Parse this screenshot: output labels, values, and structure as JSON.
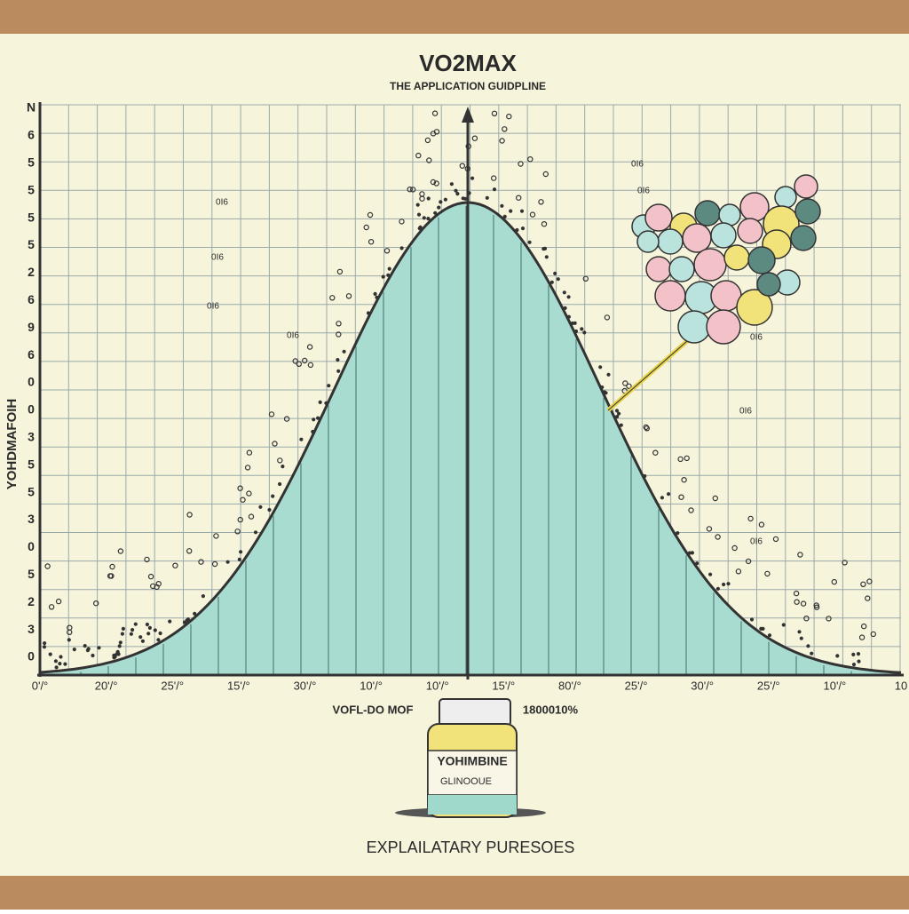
{
  "poster": {
    "title": "VO2MAX",
    "subtitle": "THE APPLICATION GUIDPLINE",
    "y_axis_label": "YOHDMAFOIH",
    "y_labels": [
      "N",
      "6",
      "5",
      "5",
      "5",
      "5",
      "2",
      "6",
      "9",
      "6",
      "0",
      "0",
      "3",
      "5",
      "5",
      "3",
      "0",
      "5",
      "2",
      "3",
      "0"
    ],
    "x_labels": [
      "0'/°",
      "20'/°",
      "25'/°",
      "15'/°",
      "30'/°",
      "10'/°",
      "10'/°",
      "15'/°",
      "80'/°",
      "25'/°",
      "30'/°",
      "25'/°",
      "10'/°",
      "10"
    ],
    "annotations": [
      "0I6",
      "0I6",
      "0I6",
      "0I6",
      "0I6",
      "0I6",
      "0I6",
      "0I6",
      "0I6"
    ],
    "bottle_left_label": "VOFL-DO MOF",
    "bottle_right_label": "1800010%",
    "bottle_name": "YOHIMBINE",
    "bottle_subname": "GLINOOUE",
    "footer": "EXPLAILATARY PURESOES"
  }
}
